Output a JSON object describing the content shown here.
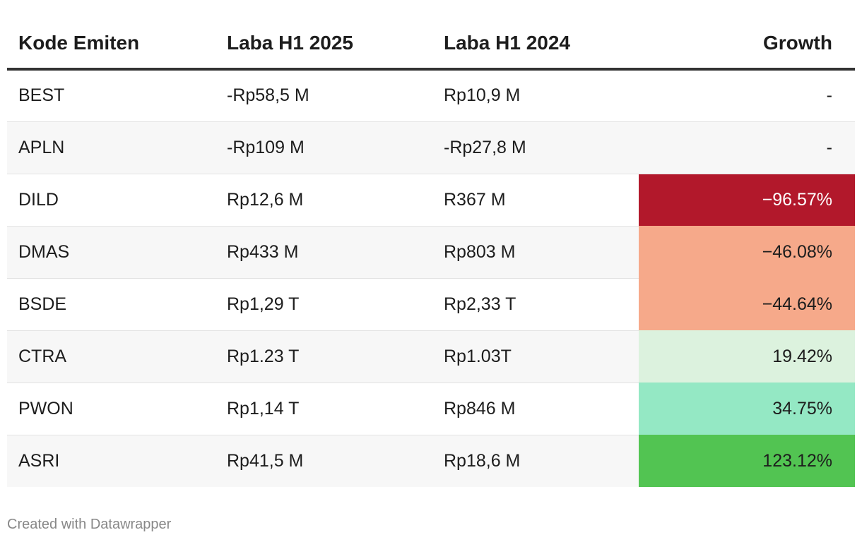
{
  "chart_data": {
    "type": "table",
    "columns": [
      "Kode Emiten",
      "Laba H1 2025",
      "Laba H1 2024",
      "Growth"
    ],
    "rows": [
      {
        "kode": "BEST",
        "laba_2025": "-Rp58,5 M",
        "laba_2024": "Rp10,9 M",
        "growth": "-",
        "growth_color": ""
      },
      {
        "kode": "APLN",
        "laba_2025": "-Rp109 M",
        "laba_2024": "-Rp27,8 M",
        "growth": "-",
        "growth_color": ""
      },
      {
        "kode": "DILD",
        "laba_2025": "Rp12,6 M",
        "laba_2024": "R367 M",
        "growth": "−96.57%",
        "growth_color": "#b2182b",
        "growth_text_color": "#ffffff"
      },
      {
        "kode": "DMAS",
        "laba_2025": "Rp433 M",
        "laba_2024": "Rp803 M",
        "growth": "−46.08%",
        "growth_color": "#f6a98a",
        "growth_text_color": "#1d1d1d"
      },
      {
        "kode": "BSDE",
        "laba_2025": "Rp1,29 T",
        "laba_2024": "Rp2,33 T",
        "growth": "−44.64%",
        "growth_color": "#f6a98a",
        "growth_text_color": "#1d1d1d"
      },
      {
        "kode": "CTRA",
        "laba_2025": "Rp1.23 T",
        "laba_2024": "Rp1.03T",
        "growth": "19.42%",
        "growth_color": "#dcf2de",
        "growth_text_color": "#1d1d1d"
      },
      {
        "kode": "PWON",
        "laba_2025": "Rp1,14 T",
        "laba_2024": "Rp846 M",
        "growth": "34.75%",
        "growth_color": "#94e8c4",
        "growth_text_color": "#1d1d1d"
      },
      {
        "kode": "ASRI",
        "laba_2025": "Rp41,5 M",
        "laba_2024": "Rp18,6 M",
        "growth": "123.12%",
        "growth_color": "#52c452",
        "growth_text_color": "#1d1d1d"
      }
    ]
  },
  "footer": {
    "credit": "Created with Datawrapper"
  }
}
